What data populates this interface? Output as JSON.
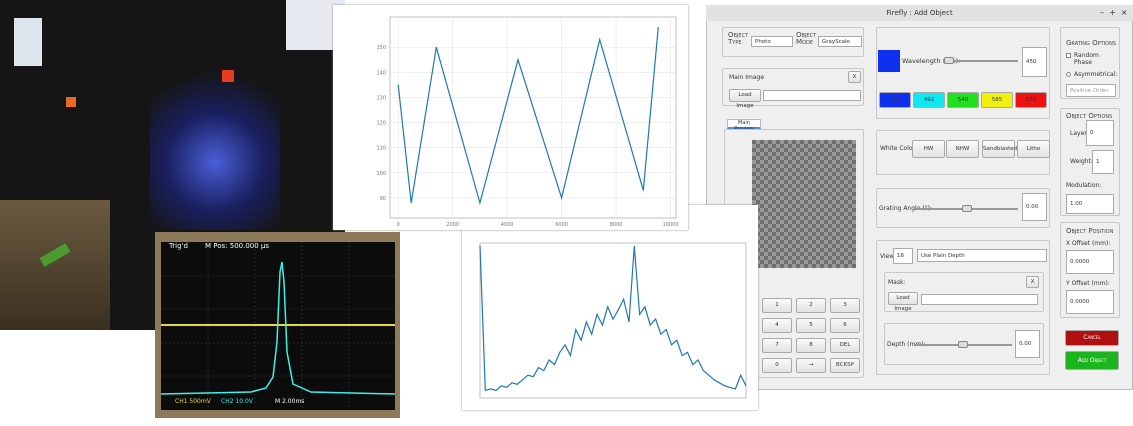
{
  "chart_data": [
    {
      "type": "line",
      "color": "#1f77b4",
      "grid": true,
      "x": [
        0,
        480,
        1400,
        3000,
        4400,
        6000,
        7400,
        9000,
        9550
      ],
      "values": [
        135,
        88,
        150,
        88,
        145,
        90,
        153,
        93,
        158
      ],
      "xlim": [
        -300,
        10200
      ],
      "xticks": [
        0,
        2000,
        4000,
        6000,
        8000,
        10000
      ],
      "ylim": [
        82,
        162
      ],
      "yticks": [
        90,
        100,
        110,
        120,
        130,
        140,
        150
      ]
    },
    {
      "type": "line",
      "color": "#1f77b4",
      "x": [
        0,
        20,
        40,
        60,
        80,
        100,
        120,
        140,
        160,
        180,
        200,
        220,
        240,
        260,
        280,
        300,
        320,
        340,
        360,
        380,
        400,
        420,
        440,
        460,
        480,
        500,
        520,
        540,
        560,
        580,
        600,
        620,
        640,
        660,
        680,
        700,
        720,
        740,
        760,
        780,
        800,
        820,
        840,
        860,
        880,
        900,
        920,
        940,
        960,
        980,
        1000
      ],
      "values": [
        1.0,
        0.05,
        0.06,
        0.05,
        0.08,
        0.07,
        0.1,
        0.09,
        0.12,
        0.15,
        0.14,
        0.2,
        0.18,
        0.25,
        0.22,
        0.3,
        0.35,
        0.28,
        0.45,
        0.38,
        0.5,
        0.42,
        0.55,
        0.48,
        0.6,
        0.52,
        0.58,
        0.65,
        0.5,
        1.0,
        0.55,
        0.6,
        0.48,
        0.52,
        0.42,
        0.45,
        0.35,
        0.38,
        0.28,
        0.3,
        0.22,
        0.25,
        0.18,
        0.15,
        0.12,
        0.1,
        0.08,
        0.07,
        0.06,
        0.15,
        0.08
      ],
      "xlim": [
        0,
        1000
      ],
      "ylim": [
        0,
        1.02
      ]
    }
  ],
  "scope": {
    "status": "Trig'd",
    "position": "M Pos: 500.000 µs",
    "ch1": "CH1 500mV",
    "ch2": "CH2 10.0V",
    "timebase": "M 2.00ms"
  },
  "window": {
    "title": "Firefly : Add Object",
    "controls": [
      "–",
      "+",
      "×"
    ],
    "object_type": {
      "label": "Object Type",
      "value": "Photo"
    },
    "object_mode": {
      "label": "Object Mode",
      "value": "GrayScale"
    },
    "main_image": {
      "label": "Main Image",
      "close": "X",
      "button": "Load Image"
    },
    "preview_tab": "Main Preview",
    "keypad": [
      [
        "1",
        "2",
        "3"
      ],
      [
        "4",
        "5",
        "6"
      ],
      [
        "7",
        "8",
        "DEL"
      ],
      [
        "0",
        "→",
        "BCKSP"
      ]
    ],
    "wavelength": {
      "label": "Wavelength (nm):",
      "value": "450",
      "presets": [
        "405",
        "492",
        "540",
        "585",
        "633"
      ]
    },
    "white_colors": {
      "label": "White Colors:",
      "options": [
        "HW",
        "NHW",
        "Sandblasted",
        "Litho"
      ]
    },
    "grating_angle": {
      "label": "Grating Angle (°):",
      "value": "0.00"
    },
    "views": {
      "label": "Views:",
      "value": "16",
      "mode": "Use Plain Depth"
    },
    "mask": {
      "label": "Mask:",
      "close": "X",
      "button": "Load Image"
    },
    "depth": {
      "label": "Depth (mm):",
      "value": "0.00"
    },
    "grating_options": {
      "title": "Grating Options",
      "random_phase": "Random Phase",
      "asymmetrical": "Asymmetrical:",
      "order": "Positive Order"
    },
    "object_options": {
      "title": "Object Options",
      "layer_label": "Layer:",
      "layer": "0",
      "weight_label": "Weight:",
      "weight": "1",
      "modulation_label": "Modulation:",
      "modulation": "1.00"
    },
    "object_position": {
      "title": "Object Position",
      "x_label": "X Offset (mm):",
      "x": "0.0000",
      "y_label": "Y Offset (mm):",
      "y": "0.0000"
    },
    "cancel": "Cancel",
    "add": "Add Object"
  }
}
